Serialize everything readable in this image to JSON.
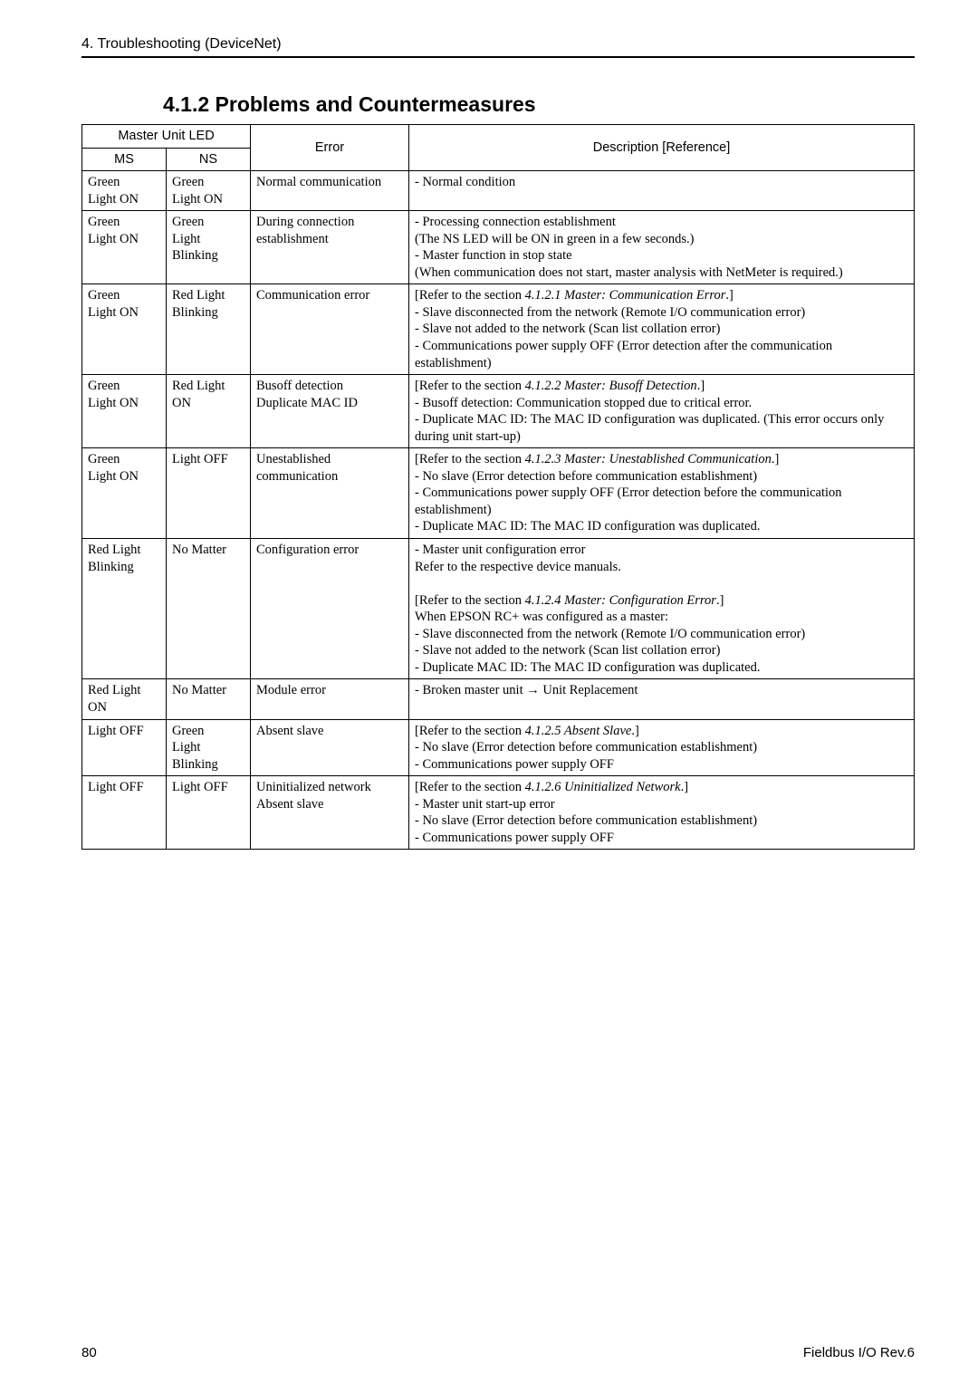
{
  "header": {
    "text": "4. Troubleshooting (DeviceNet)"
  },
  "section": {
    "title": "4.1.2 Problems and Countermeasures"
  },
  "table": {
    "head": {
      "unit_led": "Master Unit LED",
      "ms": "MS",
      "ns": "NS",
      "error": "Error",
      "desc": "Description [Reference]"
    },
    "rows": [
      {
        "ms": "Green\nLight ON",
        "ns": "Green\nLight ON",
        "err": "Normal communication",
        "desc": "- Normal condition"
      },
      {
        "ms": "Green\nLight ON",
        "ns": "Green\nLight\nBlinking",
        "err": "During connection establishment",
        "desc": "- Processing connection establishment\n  (The NS LED will be ON in green in a few seconds.)\n- Master function in stop state\n  (When communication does not start, master analysis with NetMeter is required.)"
      },
      {
        "ms": "Green\nLight ON",
        "ns": "Red Light\nBlinking",
        "err": "Communication error",
        "desc_parts": [
          {
            "t": "[Refer to the section "
          },
          {
            "t": "4.1.2.1 Master: Communication Error",
            "i": true
          },
          {
            "t": ".]"
          },
          {
            "br": true
          },
          {
            "t": "- Slave disconnected from the network  (Remote I/O communication error)"
          },
          {
            "br": true
          },
          {
            "t": "- Slave not added to the network  (Scan list collation error)"
          },
          {
            "br": true
          },
          {
            "t": "- Communications power supply OFF  (Error detection after the communication establishment)"
          }
        ]
      },
      {
        "ms": "Green\nLight ON",
        "ns": "Red Light\nON",
        "err": "Busoff detection\nDuplicate MAC ID",
        "desc_parts": [
          {
            "t": "[Refer to the section "
          },
          {
            "t": "4.1.2.2 Master: Busoff Detection",
            "i": true
          },
          {
            "t": ".]"
          },
          {
            "br": true
          },
          {
            "t": "- Busoff detection: Communication stopped due to critical error."
          },
          {
            "br": true
          },
          {
            "t": "- Duplicate MAC ID: The MAC ID configuration was duplicated. (This error occurs only during unit start-up)"
          }
        ]
      },
      {
        "ms": "Green\nLight ON",
        "ns": "Light OFF",
        "err": "Unestablished communication",
        "desc_parts": [
          {
            "t": "[Refer to the section "
          },
          {
            "t": "4.1.2.3 Master: Unestablished Communication",
            "i": true
          },
          {
            "t": ".]"
          },
          {
            "br": true
          },
          {
            "t": "- No slave (Error detection before communication establishment)"
          },
          {
            "br": true
          },
          {
            "t": "- Communications power supply OFF (Error detection before the communication establishment)"
          },
          {
            "br": true
          },
          {
            "t": "- Duplicate MAC ID: The MAC ID configuration was duplicated."
          }
        ]
      },
      {
        "ms": "Red Light\nBlinking",
        "ns": "No Matter",
        "err": "Configuration error",
        "desc_parts": [
          {
            "t": "- Master unit configuration error"
          },
          {
            "br": true
          },
          {
            "t": "  Refer to the respective device manuals."
          },
          {
            "br": true
          },
          {
            "br": true
          },
          {
            "t": "[Refer to the section "
          },
          {
            "t": "4.1.2.4 Master: Configuration Error",
            "i": true
          },
          {
            "t": ".]"
          },
          {
            "br": true
          },
          {
            "t": "When EPSON RC+ was configured as a master:"
          },
          {
            "br": true
          },
          {
            "t": "- Slave disconnected from the network  (Remote I/O communication error)"
          },
          {
            "br": true
          },
          {
            "t": "- Slave not added to the network (Scan list collation error)"
          },
          {
            "br": true
          },
          {
            "t": "- Duplicate MAC ID: The MAC ID configuration was duplicated."
          }
        ]
      },
      {
        "ms": "Red Light\nON",
        "ns": "No Matter",
        "err": "Module error",
        "desc": "- Broken master unit → Unit Replacement"
      },
      {
        "ms": "Light OFF",
        "ns": "Green\nLight\nBlinking",
        "err": "Absent slave",
        "desc_parts": [
          {
            "t": "[Refer to the section "
          },
          {
            "t": "4.1.2.5 Absent Slave",
            "i": true
          },
          {
            "t": ".]"
          },
          {
            "br": true
          },
          {
            "t": "- No slave (Error detection before communication establishment)"
          },
          {
            "br": true
          },
          {
            "t": "- Communications power supply OFF"
          }
        ]
      },
      {
        "ms": "Light OFF",
        "ns": "Light OFF",
        "err": "Uninitialized network\nAbsent slave",
        "desc_parts": [
          {
            "t": "[Refer to the section "
          },
          {
            "t": "4.1.2.6 Uninitialized Network",
            "i": true
          },
          {
            "t": ".]"
          },
          {
            "br": true
          },
          {
            "t": "- Master unit start-up error"
          },
          {
            "br": true
          },
          {
            "t": "- No slave (Error detection before communication establishment)"
          },
          {
            "br": true
          },
          {
            "t": "- Communications power supply OFF"
          }
        ]
      }
    ]
  },
  "footer": {
    "page": "80",
    "doc": "Fieldbus I/O Rev.6"
  },
  "style": {
    "colors": {
      "bg": "#ffffff",
      "text": "#000000",
      "border": "#000000"
    },
    "fonts": {
      "body": "Times New Roman",
      "ui": "Arial"
    }
  }
}
